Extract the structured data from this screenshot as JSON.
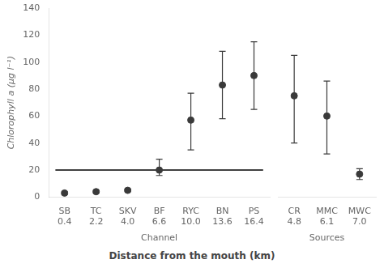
{
  "chart_data": [
    {
      "type": "errorbar",
      "categories": [
        "SB",
        "TC",
        "SKV",
        "BF",
        "RYC",
        "BN",
        "PS"
      ],
      "distances": [
        "0.4",
        "2.2",
        "4.0",
        "6.6",
        "10.0",
        "13.6",
        "16.4"
      ],
      "group_label": "Channel",
      "values": [
        3,
        4,
        5,
        20,
        57,
        83,
        90
      ],
      "error_lo": [
        1,
        1,
        1,
        4,
        22,
        25,
        25
      ],
      "error_hi": [
        1,
        1,
        1,
        8,
        20,
        25,
        25
      ],
      "color": "#3a3a3a",
      "hline": {
        "value": 20,
        "color": "#000000"
      },
      "ylim": [
        0,
        140
      ],
      "yticks": [
        0,
        20,
        40,
        60,
        80,
        100,
        120,
        140
      ],
      "ylabel": "Chlorophyll a (μg l⁻¹)",
      "xlabel": "Distance from the mouth (km)",
      "grid": false
    },
    {
      "type": "errorbar",
      "categories": [
        "CR",
        "MMC",
        "MWC"
      ],
      "distances": [
        "4.8",
        "6.1",
        "7.0"
      ],
      "group_label": "Sources",
      "values": [
        75,
        60,
        17
      ],
      "error_lo": [
        35,
        28,
        4
      ],
      "error_hi": [
        30,
        26,
        4
      ],
      "color": "#3a3a3a",
      "ylim": [
        0,
        140
      ],
      "yticks": [
        0,
        20,
        40,
        60,
        80,
        100,
        120,
        140
      ],
      "tick_labels": "x",
      "grid": false
    }
  ]
}
